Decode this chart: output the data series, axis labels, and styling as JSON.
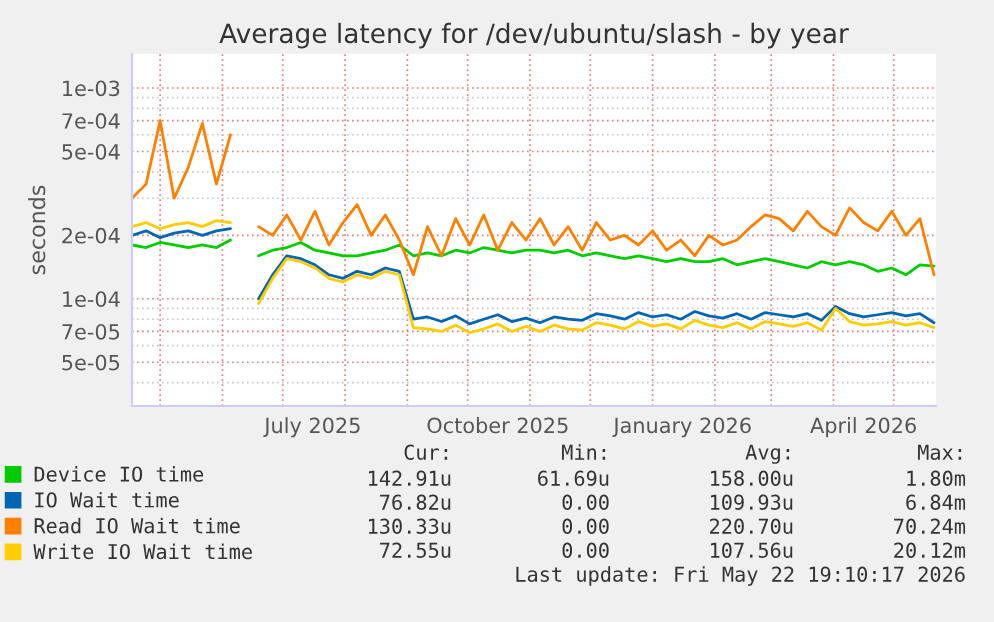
{
  "chart_data": {
    "type": "line",
    "title": "Average latency for /dev/ubuntu/slash - by year",
    "ylabel": "seconds",
    "log": "y",
    "grid": true,
    "legend": "bottom",
    "marker": "none",
    "line_style": "solid",
    "x": [
      "2025-04-17",
      "2025-04-24",
      "2025-05-01",
      "2025-05-08",
      "2025-05-15",
      "2025-05-22",
      "2025-05-29",
      "2025-06-05",
      "2025-06-12",
      "2025-06-19",
      "2025-06-26",
      "2025-07-03",
      "2025-07-10",
      "2025-07-17",
      "2025-07-24",
      "2025-07-31",
      "2025-08-07",
      "2025-08-14",
      "2025-08-21",
      "2025-08-28",
      "2025-09-04",
      "2025-09-11",
      "2025-09-18",
      "2025-09-25",
      "2025-10-02",
      "2025-10-09",
      "2025-10-16",
      "2025-10-23",
      "2025-10-30",
      "2025-11-06",
      "2025-11-13",
      "2025-11-20",
      "2025-11-27",
      "2025-12-04",
      "2025-12-11",
      "2025-12-18",
      "2025-12-25",
      "2026-01-01",
      "2026-01-08",
      "2026-01-15",
      "2026-01-22",
      "2026-01-29",
      "2026-02-05",
      "2026-02-12",
      "2026-02-19",
      "2026-02-26",
      "2026-03-05",
      "2026-03-12",
      "2026-03-19",
      "2026-03-26",
      "2026-04-02",
      "2026-04-09",
      "2026-04-16",
      "2026-04-23",
      "2026-04-30",
      "2026-05-07",
      "2026-05-14",
      "2026-05-21"
    ],
    "xlim": [
      "2025-04-17",
      "2026-05-22"
    ],
    "xticks": [
      {
        "value": "2025-05-01",
        "label": null
      },
      {
        "value": "2025-06-01",
        "label": null
      },
      {
        "value": "2025-07-01",
        "label": null
      },
      {
        "value": "2025-07-16",
        "label": "July 2025"
      },
      {
        "value": "2025-08-01",
        "label": null
      },
      {
        "value": "2025-09-01",
        "label": null
      },
      {
        "value": "2025-10-01",
        "label": null
      },
      {
        "value": "2025-10-16",
        "label": "October 2025"
      },
      {
        "value": "2025-11-01",
        "label": null
      },
      {
        "value": "2025-12-01",
        "label": null
      },
      {
        "value": "2026-01-01",
        "label": null
      },
      {
        "value": "2026-01-16",
        "label": "January 2026"
      },
      {
        "value": "2026-02-01",
        "label": null
      },
      {
        "value": "2026-03-01",
        "label": null
      },
      {
        "value": "2026-04-01",
        "label": null
      },
      {
        "value": "2026-04-16",
        "label": "April 2026"
      },
      {
        "value": "2026-05-01",
        "label": null
      }
    ],
    "ylim": [
      3.1e-05,
      0.00145
    ],
    "yticks": [
      {
        "value": 4e-05,
        "label": null
      },
      {
        "value": 5e-05,
        "label": "5e-05"
      },
      {
        "value": 6e-05,
        "label": null
      },
      {
        "value": 7e-05,
        "label": "7e-05"
      },
      {
        "value": 8e-05,
        "label": null
      },
      {
        "value": 9e-05,
        "label": null
      },
      {
        "value": 0.0001,
        "label": "1e-04"
      },
      {
        "value": 0.0002,
        "label": "2e-04"
      },
      {
        "value": 0.0003,
        "label": null
      },
      {
        "value": 0.0004,
        "label": null
      },
      {
        "value": 0.0005,
        "label": "5e-04"
      },
      {
        "value": 0.0006,
        "label": null
      },
      {
        "value": 0.0007,
        "label": "7e-04"
      },
      {
        "value": 0.0008,
        "label": null
      },
      {
        "value": 0.0009,
        "label": null
      },
      {
        "value": 0.001,
        "label": "1e-03"
      }
    ],
    "series": [
      {
        "name": "Device IO time",
        "color": "#00cc00",
        "values": [
          0.00018,
          0.000175,
          0.000185,
          0.00018,
          0.000175,
          0.00018,
          0.000175,
          0.00019,
          null,
          0.00016,
          0.00017,
          0.000175,
          0.000185,
          0.00017,
          0.000165,
          0.00016,
          0.00016,
          0.000165,
          0.00017,
          0.00018,
          0.00016,
          0.000165,
          0.00016,
          0.00017,
          0.000165,
          0.000175,
          0.00017,
          0.000165,
          0.00017,
          0.00017,
          0.000165,
          0.00017,
          0.00016,
          0.000165,
          0.00016,
          0.000155,
          0.00016,
          0.000155,
          0.00015,
          0.000155,
          0.00015,
          0.00015,
          0.000155,
          0.000145,
          0.00015,
          0.000155,
          0.00015,
          0.000145,
          0.00014,
          0.00015,
          0.000145,
          0.00015,
          0.000145,
          0.000135,
          0.00014,
          0.00013,
          0.000145,
          0.000143
        ]
      },
      {
        "name": "IO Wait time",
        "color": "#0066b3",
        "values": [
          0.0002,
          0.00021,
          0.000195,
          0.000205,
          0.00021,
          0.0002,
          0.00021,
          0.000215,
          null,
          0.0001,
          0.00013,
          0.00016,
          0.000155,
          0.000145,
          0.00013,
          0.000125,
          0.000135,
          0.00013,
          0.00014,
          0.000135,
          8e-05,
          8.2e-05,
          7.8e-05,
          8.3e-05,
          7.6e-05,
          8e-05,
          8.4e-05,
          7.8e-05,
          8.1e-05,
          7.7e-05,
          8.2e-05,
          8e-05,
          7.9e-05,
          8.5e-05,
          8.3e-05,
          8e-05,
          8.6e-05,
          8.2e-05,
          8.4e-05,
          8e-05,
          8.7e-05,
          8.3e-05,
          8.1e-05,
          8.5e-05,
          8e-05,
          8.6e-05,
          8.4e-05,
          8.2e-05,
          8.5e-05,
          7.9e-05,
          9.2e-05,
          8.5e-05,
          8.2e-05,
          8.4e-05,
          8.6e-05,
          8.3e-05,
          8.5e-05,
          7.7e-05
        ]
      },
      {
        "name": "Read IO Wait time",
        "color": "#ff8000",
        "values": [
          0.0003,
          0.00035,
          0.0007,
          0.0003,
          0.00042,
          0.00068,
          0.00035,
          0.0006,
          null,
          0.00022,
          0.0002,
          0.00025,
          0.00019,
          0.00026,
          0.00018,
          0.00023,
          0.00028,
          0.0002,
          0.00025,
          0.00019,
          0.00013,
          0.00022,
          0.00016,
          0.00024,
          0.00018,
          0.00025,
          0.00017,
          0.00023,
          0.00019,
          0.00024,
          0.00018,
          0.00022,
          0.00017,
          0.00023,
          0.00019,
          0.0002,
          0.00018,
          0.00021,
          0.00017,
          0.00019,
          0.00016,
          0.0002,
          0.00018,
          0.00019,
          0.00022,
          0.00025,
          0.00024,
          0.00021,
          0.00026,
          0.00022,
          0.0002,
          0.00027,
          0.00023,
          0.00021,
          0.00026,
          0.0002,
          0.00024,
          0.00013
        ]
      },
      {
        "name": "Write IO Wait time",
        "color": "#ffcc00",
        "values": [
          0.00022,
          0.00023,
          0.000215,
          0.000225,
          0.00023,
          0.00022,
          0.000235,
          0.00023,
          null,
          9.5e-05,
          0.000125,
          0.000155,
          0.00015,
          0.00014,
          0.000125,
          0.00012,
          0.00013,
          0.000125,
          0.000135,
          0.00013,
          7.3e-05,
          7.2e-05,
          7e-05,
          7.5e-05,
          6.9e-05,
          7.2e-05,
          7.6e-05,
          7e-05,
          7.4e-05,
          7e-05,
          7.5e-05,
          7.2e-05,
          7.1e-05,
          7.7e-05,
          7.5e-05,
          7.2e-05,
          7.8e-05,
          7.4e-05,
          7.6e-05,
          7.2e-05,
          7.9e-05,
          7.5e-05,
          7.3e-05,
          7.7e-05,
          7.2e-05,
          7.8e-05,
          7.6e-05,
          7.4e-05,
          7.7e-05,
          7.1e-05,
          9e-05,
          7.8e-05,
          7.5e-05,
          7.6e-05,
          7.8e-05,
          7.5e-05,
          7.7e-05,
          7.3e-05
        ]
      }
    ],
    "annotations": [
      "Cur:",
      "Min:",
      "Avg:",
      "Max:",
      "142.91u",
      "61.69u",
      "158.00u",
      "1.80m",
      "76.82u",
      "0.00",
      "109.93u",
      "6.84m",
      "130.33u",
      "0.00",
      "220.70u",
      "70.24m",
      "72.55u",
      "0.00",
      "107.56u",
      "20.12m",
      "Last update: Fri May 22 19:10:17 2026"
    ]
  }
}
